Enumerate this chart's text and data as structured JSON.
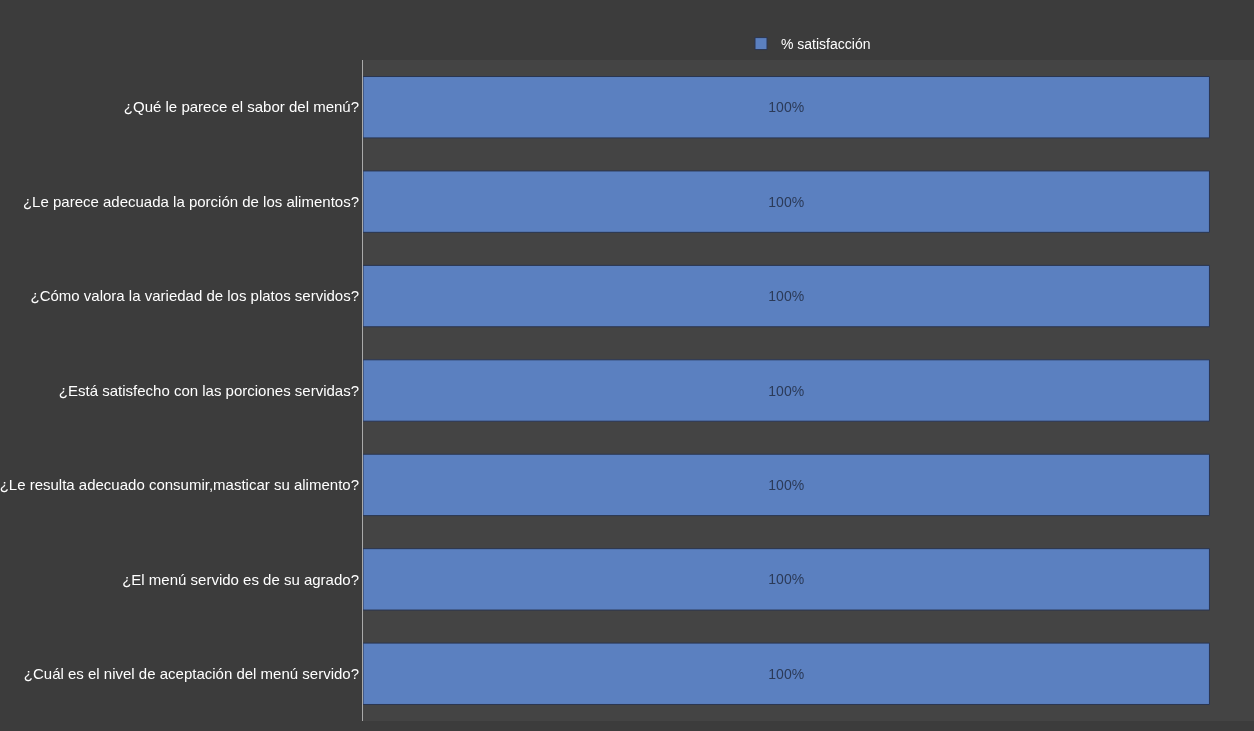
{
  "chart_data": {
    "type": "bar",
    "orientation": "horizontal",
    "categories": [
      "¿Qué le parece el sabor del menú?",
      "¿Le parece adecuada la porción de los alimentos?",
      "¿Cómo valora la variedad de los platos servidos?",
      "¿Está satisfecho con las porciones servidas?",
      "¿Le resulta adecuado consumir,masticar su alimento?",
      "¿El menú servido es de su agrado?",
      "¿Cuál es el nivel de aceptación del menú servido?"
    ],
    "series": [
      {
        "name": "% satisfacción",
        "color": "#5b80c0",
        "values": [
          100,
          100,
          100,
          100,
          100,
          100,
          100
        ],
        "value_labels": [
          "100%",
          "100%",
          "100%",
          "100%",
          "100%",
          "100%",
          "100%"
        ]
      }
    ],
    "legend": "top",
    "grid": false
  }
}
